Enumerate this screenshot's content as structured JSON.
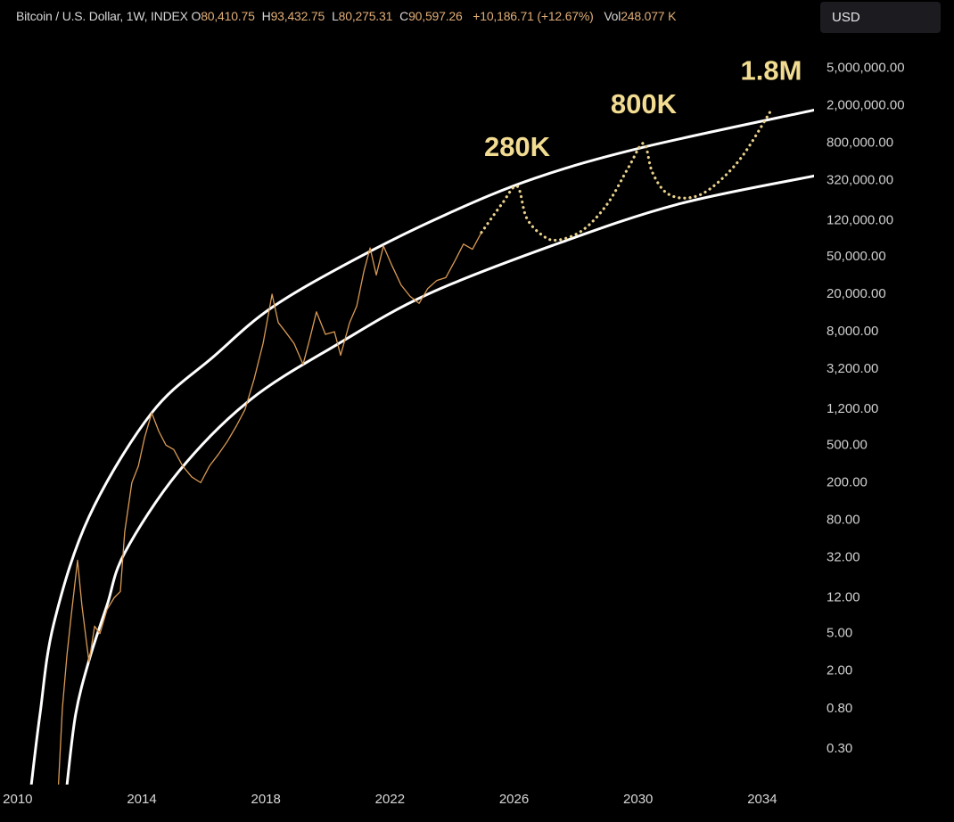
{
  "header": {
    "title": "Bitcoin / U.S. Dollar, 1W, INDEX",
    "ohlc": [
      {
        "label": "O",
        "value": "80,410.75"
      },
      {
        "label": "H",
        "value": "93,432.75"
      },
      {
        "label": "L",
        "value": "80,275.31"
      },
      {
        "label": "C",
        "value": "90,597.26"
      }
    ],
    "change": "+10,186.71 (+12.67%)",
    "volume": {
      "label": "Vol",
      "value": "248.077 K"
    },
    "currency": "USD"
  },
  "chart_data": {
    "type": "line",
    "yscale": "log",
    "grid": false,
    "background": "#000000",
    "xlim": [
      2009.43,
      2035.67
    ],
    "xticks": [
      2010,
      2014,
      2018,
      2022,
      2026,
      2030,
      2034
    ],
    "ylim": [
      0.125,
      13800000
    ],
    "yticks": [
      {
        "value": 5000000,
        "label": "5,000,000.00"
      },
      {
        "value": 2000000,
        "label": "2,000,000.00"
      },
      {
        "value": 800000,
        "label": "800,000.00"
      },
      {
        "value": 320000,
        "label": "320,000.00"
      },
      {
        "value": 120000,
        "label": "120,000.00"
      },
      {
        "value": 50000,
        "label": "50,000.00"
      },
      {
        "value": 20000,
        "label": "20,000.00"
      },
      {
        "value": 8000,
        "label": "8,000.00"
      },
      {
        "value": 3200,
        "label": "3,200.00"
      },
      {
        "value": 1200,
        "label": "1,200.00"
      },
      {
        "value": 500,
        "label": "500.00"
      },
      {
        "value": 200,
        "label": "200.00"
      },
      {
        "value": 80,
        "label": "80.00"
      },
      {
        "value": 32,
        "label": "32.00"
      },
      {
        "value": 12,
        "label": "12.00"
      },
      {
        "value": 5,
        "label": "5.00"
      },
      {
        "value": 2,
        "label": "2.00"
      },
      {
        "value": 0.8,
        "label": "0.80"
      },
      {
        "value": 0.3,
        "label": "0.30"
      }
    ],
    "series": [
      {
        "color": "#ffffff",
        "width": 3,
        "dash": "solid",
        "smooth": true,
        "x": [
          2010.44,
          2010.72,
          2011.16,
          2012.3,
          2014.32,
          2016.33,
          2018.2,
          2020.93,
          2023.8,
          2026.67,
          2030.12,
          2035.67
        ],
        "values": [
          0.125,
          0.7,
          6.3,
          87,
          1100,
          4400,
          14500,
          48000,
          140000,
          340000,
          720000,
          1800000
        ]
      },
      {
        "color": "#ffffff",
        "width": 3,
        "dash": "solid",
        "smooth": true,
        "x": [
          2011.59,
          2011.87,
          2012.3,
          2012.88,
          2013.45,
          2015.18,
          2017.48,
          2020.35,
          2023.22,
          2027.25,
          2031.27,
          2035.67
        ],
        "values": [
          0.125,
          0.7,
          2.6,
          10,
          36,
          260,
          1500,
          6000,
          20000,
          66000,
          180000,
          360000
        ]
      },
      {
        "color": "#d99a55",
        "width": 1.3,
        "dash": "solid",
        "smooth": false,
        "x": [
          2011.3,
          2011.44,
          2011.59,
          2011.73,
          2011.93,
          2012.07,
          2012.22,
          2012.3,
          2012.48,
          2012.65,
          2012.88,
          2013.11,
          2013.31,
          2013.45,
          2013.68,
          2013.89,
          2014.09,
          2014.32,
          2014.55,
          2014.78,
          2015.03,
          2015.32,
          2015.61,
          2015.9,
          2016.18,
          2016.47,
          2016.76,
          2017.05,
          2017.33,
          2017.62,
          2017.91,
          2018.2,
          2018.4,
          2018.63,
          2018.91,
          2019.2,
          2019.43,
          2019.63,
          2019.92,
          2020.21,
          2020.41,
          2020.7,
          2020.93,
          2021.16,
          2021.36,
          2021.56,
          2021.79,
          2022.07,
          2022.36,
          2022.65,
          2022.94,
          2023.22,
          2023.51,
          2023.8,
          2024.09,
          2024.37,
          2024.66,
          2024.95
        ],
        "values": [
          0.1,
          0.8,
          3,
          8,
          30,
          10,
          4,
          2.5,
          6,
          5,
          9,
          12,
          14,
          60,
          200,
          300,
          600,
          1100,
          700,
          500,
          450,
          300,
          230,
          200,
          300,
          400,
          550,
          800,
          1200,
          2500,
          6000,
          20000,
          10000,
          8000,
          6000,
          3600,
          7000,
          13000,
          7500,
          8000,
          4500,
          10000,
          15000,
          35000,
          62000,
          32000,
          65000,
          40000,
          25000,
          19000,
          16000,
          23000,
          28000,
          30000,
          45000,
          68000,
          60000,
          90597
        ]
      },
      {
        "color": "#e8d08c",
        "width": 3.2,
        "dash": "dotted",
        "smooth": true,
        "x": [
          2024.95,
          2025.6,
          2026.1,
          2026.4,
          2026.9,
          2027.39,
          2028.2,
          2029.0,
          2029.7,
          2030.18,
          2030.45,
          2030.9,
          2031.56,
          2032.3,
          2033.3,
          2034.29
        ],
        "values": [
          90597,
          180000,
          280000,
          130000,
          85000,
          75000,
          95000,
          180000,
          450000,
          800000,
          400000,
          240000,
          210000,
          260000,
          550000,
          1800000
        ]
      }
    ],
    "annotations": [
      {
        "text": "280K",
        "x": 2026.1,
        "y": 280000
      },
      {
        "text": "800K",
        "x": 2030.18,
        "y": 800000
      },
      {
        "text": "1.8M",
        "x": 2034.29,
        "y": 1800000
      }
    ],
    "annotation_color": "#f2dc92"
  }
}
